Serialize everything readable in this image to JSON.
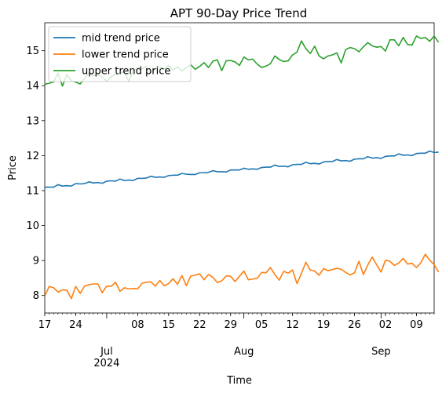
{
  "chart_data": {
    "type": "line",
    "title": "APT 90-Day Price Trend",
    "xlabel": "Time",
    "ylabel": "Price",
    "x_start": "2024-06-17",
    "x_range": [
      "2024-06-17",
      "2024-09-13"
    ],
    "ylim": [
      7.5,
      15.8
    ],
    "grid": false,
    "legend_position": "top-left",
    "y_ticks": [
      "8",
      "9",
      "10",
      "11",
      "12",
      "13",
      "14",
      "15"
    ],
    "x_ticks": [
      {
        "date": "2024-06-17",
        "label": "17",
        "sub": ""
      },
      {
        "date": "2024-06-24",
        "label": "24",
        "sub": ""
      },
      {
        "date": "2024-07-01",
        "label": "",
        "sub": "Jul\n2024"
      },
      {
        "date": "2024-07-08",
        "label": "08",
        "sub": ""
      },
      {
        "date": "2024-07-15",
        "label": "15",
        "sub": ""
      },
      {
        "date": "2024-07-22",
        "label": "22",
        "sub": ""
      },
      {
        "date": "2024-07-29",
        "label": "29",
        "sub": ""
      },
      {
        "date": "2024-08-01",
        "label": "",
        "sub": "Aug"
      },
      {
        "date": "2024-08-05",
        "label": "05",
        "sub": ""
      },
      {
        "date": "2024-08-12",
        "label": "12",
        "sub": ""
      },
      {
        "date": "2024-08-19",
        "label": "19",
        "sub": ""
      },
      {
        "date": "2024-08-26",
        "label": "26",
        "sub": ""
      },
      {
        "date": "2024-09-01",
        "label": "",
        "sub": "Sep"
      },
      {
        "date": "2024-09-02",
        "label": "02",
        "sub": ""
      },
      {
        "date": "2024-09-09",
        "label": "09",
        "sub": ""
      }
    ],
    "series": [
      {
        "name": "mid trend price",
        "color": "#1f77b4",
        "values": [
          11.1,
          11.1,
          11.1,
          11.17,
          11.13,
          11.14,
          11.13,
          11.2,
          11.19,
          11.2,
          11.25,
          11.22,
          11.23,
          11.21,
          11.27,
          11.28,
          11.27,
          11.33,
          11.29,
          11.3,
          11.29,
          11.35,
          11.35,
          11.36,
          11.41,
          11.38,
          11.39,
          11.38,
          11.43,
          11.44,
          11.44,
          11.49,
          11.47,
          11.46,
          11.46,
          11.51,
          11.51,
          11.52,
          11.57,
          11.54,
          11.54,
          11.53,
          11.59,
          11.59,
          11.59,
          11.64,
          11.61,
          11.62,
          11.61,
          11.66,
          11.67,
          11.67,
          11.73,
          11.69,
          11.7,
          11.68,
          11.74,
          11.75,
          11.75,
          11.81,
          11.77,
          11.78,
          11.76,
          11.82,
          11.83,
          11.83,
          11.89,
          11.85,
          11.86,
          11.84,
          11.9,
          11.91,
          11.91,
          11.97,
          11.93,
          11.94,
          11.92,
          11.98,
          11.99,
          11.99,
          12.05,
          12.01,
          12.02,
          12.0,
          12.06,
          12.07,
          12.07,
          12.13,
          12.09,
          12.1
        ]
      },
      {
        "name": "lower trend price",
        "color": "#ff7f0e",
        "values": [
          7.98,
          8.26,
          8.22,
          8.1,
          8.16,
          8.15,
          7.91,
          8.26,
          8.06,
          8.27,
          8.31,
          8.33,
          8.33,
          8.08,
          8.27,
          8.26,
          8.38,
          8.12,
          8.22,
          8.19,
          8.2,
          8.19,
          8.35,
          8.38,
          8.39,
          8.27,
          8.43,
          8.28,
          8.34,
          8.48,
          8.32,
          8.57,
          8.28,
          8.56,
          8.58,
          8.62,
          8.45,
          8.6,
          8.52,
          8.37,
          8.42,
          8.56,
          8.55,
          8.4,
          8.55,
          8.7,
          8.45,
          8.47,
          8.49,
          8.66,
          8.65,
          8.8,
          8.6,
          8.44,
          8.69,
          8.64,
          8.73,
          8.34,
          8.63,
          8.95,
          8.73,
          8.7,
          8.58,
          8.77,
          8.71,
          8.74,
          8.78,
          8.75,
          8.66,
          8.59,
          8.65,
          8.98,
          8.6,
          8.87,
          9.1,
          8.88,
          8.67,
          9.01,
          8.98,
          8.86,
          8.93,
          9.06,
          8.9,
          8.92,
          8.8,
          8.94,
          9.18,
          9.01,
          8.88,
          8.67
        ]
      },
      {
        "name": "upper trend price",
        "color": "#2ca02c",
        "values": [
          14.04,
          14.07,
          14.11,
          14.36,
          13.99,
          14.32,
          14.14,
          14.1,
          14.05,
          14.21,
          14.36,
          14.28,
          14.32,
          14.25,
          14.13,
          14.26,
          14.31,
          14.37,
          14.4,
          14.12,
          14.42,
          14.51,
          14.49,
          14.55,
          14.38,
          14.47,
          14.54,
          14.48,
          14.58,
          14.45,
          14.54,
          14.42,
          14.52,
          14.6,
          14.47,
          14.55,
          14.66,
          14.52,
          14.7,
          14.74,
          14.43,
          14.71,
          14.72,
          14.68,
          14.58,
          14.82,
          14.74,
          14.76,
          14.62,
          14.52,
          14.56,
          14.63,
          14.85,
          14.75,
          14.69,
          14.71,
          14.88,
          14.96,
          15.28,
          15.06,
          14.92,
          15.13,
          14.85,
          14.77,
          14.85,
          14.88,
          14.94,
          14.65,
          15.03,
          15.09,
          15.06,
          14.97,
          15.11,
          15.23,
          15.14,
          15.1,
          15.12,
          14.99,
          15.31,
          15.31,
          15.14,
          15.38,
          15.18,
          15.16,
          15.42,
          15.35,
          15.38,
          15.27,
          15.42,
          15.24
        ]
      }
    ]
  }
}
